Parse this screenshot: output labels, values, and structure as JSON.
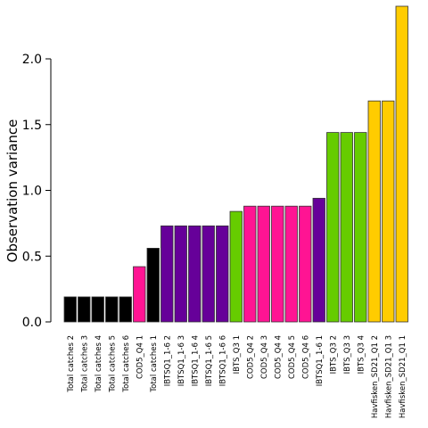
{
  "chart_data": {
    "type": "bar",
    "ylabel": "Observation variance",
    "ylim": [
      0,
      2.4
    ],
    "yticks": [
      0.0,
      0.5,
      1.0,
      1.5,
      2.0
    ],
    "ytick_labels": [
      "0.0",
      "0.5",
      "1.0",
      "1.5",
      "2.0"
    ],
    "grid": false,
    "categories": [
      "Total catches 2",
      "Total catches 3",
      "Total catches 4",
      "Total catches 5",
      "Total catches 6",
      "COD5_Q4 1",
      "Total catches 1",
      "IBTSQ1_1-6 2",
      "IBTSQ1_1-6 3",
      "IBTSQ1_1-6 4",
      "IBTSQ1_1-6 5",
      "IBTSQ1_1-6 6",
      "IBTS_Q3 1",
      "COD5_Q4 2",
      "COD5_Q4 3",
      "COD5_Q4 4",
      "COD5_Q4 5",
      "COD5_Q4 6",
      "IBTSQ1_1-6 1",
      "IBTS_Q3 2",
      "IBTS_Q3 3",
      "IBTS_Q3 4",
      "Havfisken_SD21_Q1 2",
      "Havfisken_SD21_Q1 3",
      "Havfisken_SD21_Q1 1"
    ],
    "values": [
      0.19,
      0.19,
      0.19,
      0.19,
      0.19,
      0.42,
      0.56,
      0.73,
      0.73,
      0.73,
      0.73,
      0.73,
      0.84,
      0.88,
      0.88,
      0.88,
      0.88,
      0.88,
      0.94,
      1.44,
      1.44,
      1.44,
      1.68,
      1.68,
      2.4
    ],
    "colors": [
      "#000000",
      "#000000",
      "#000000",
      "#000000",
      "#000000",
      "#ff1493",
      "#000000",
      "#660099",
      "#660099",
      "#660099",
      "#660099",
      "#660099",
      "#66cc00",
      "#ff1493",
      "#ff1493",
      "#ff1493",
      "#ff1493",
      "#ff1493",
      "#660099",
      "#66cc00",
      "#66cc00",
      "#66cc00",
      "#ffcc00",
      "#ffcc00",
      "#ffcc00"
    ]
  }
}
